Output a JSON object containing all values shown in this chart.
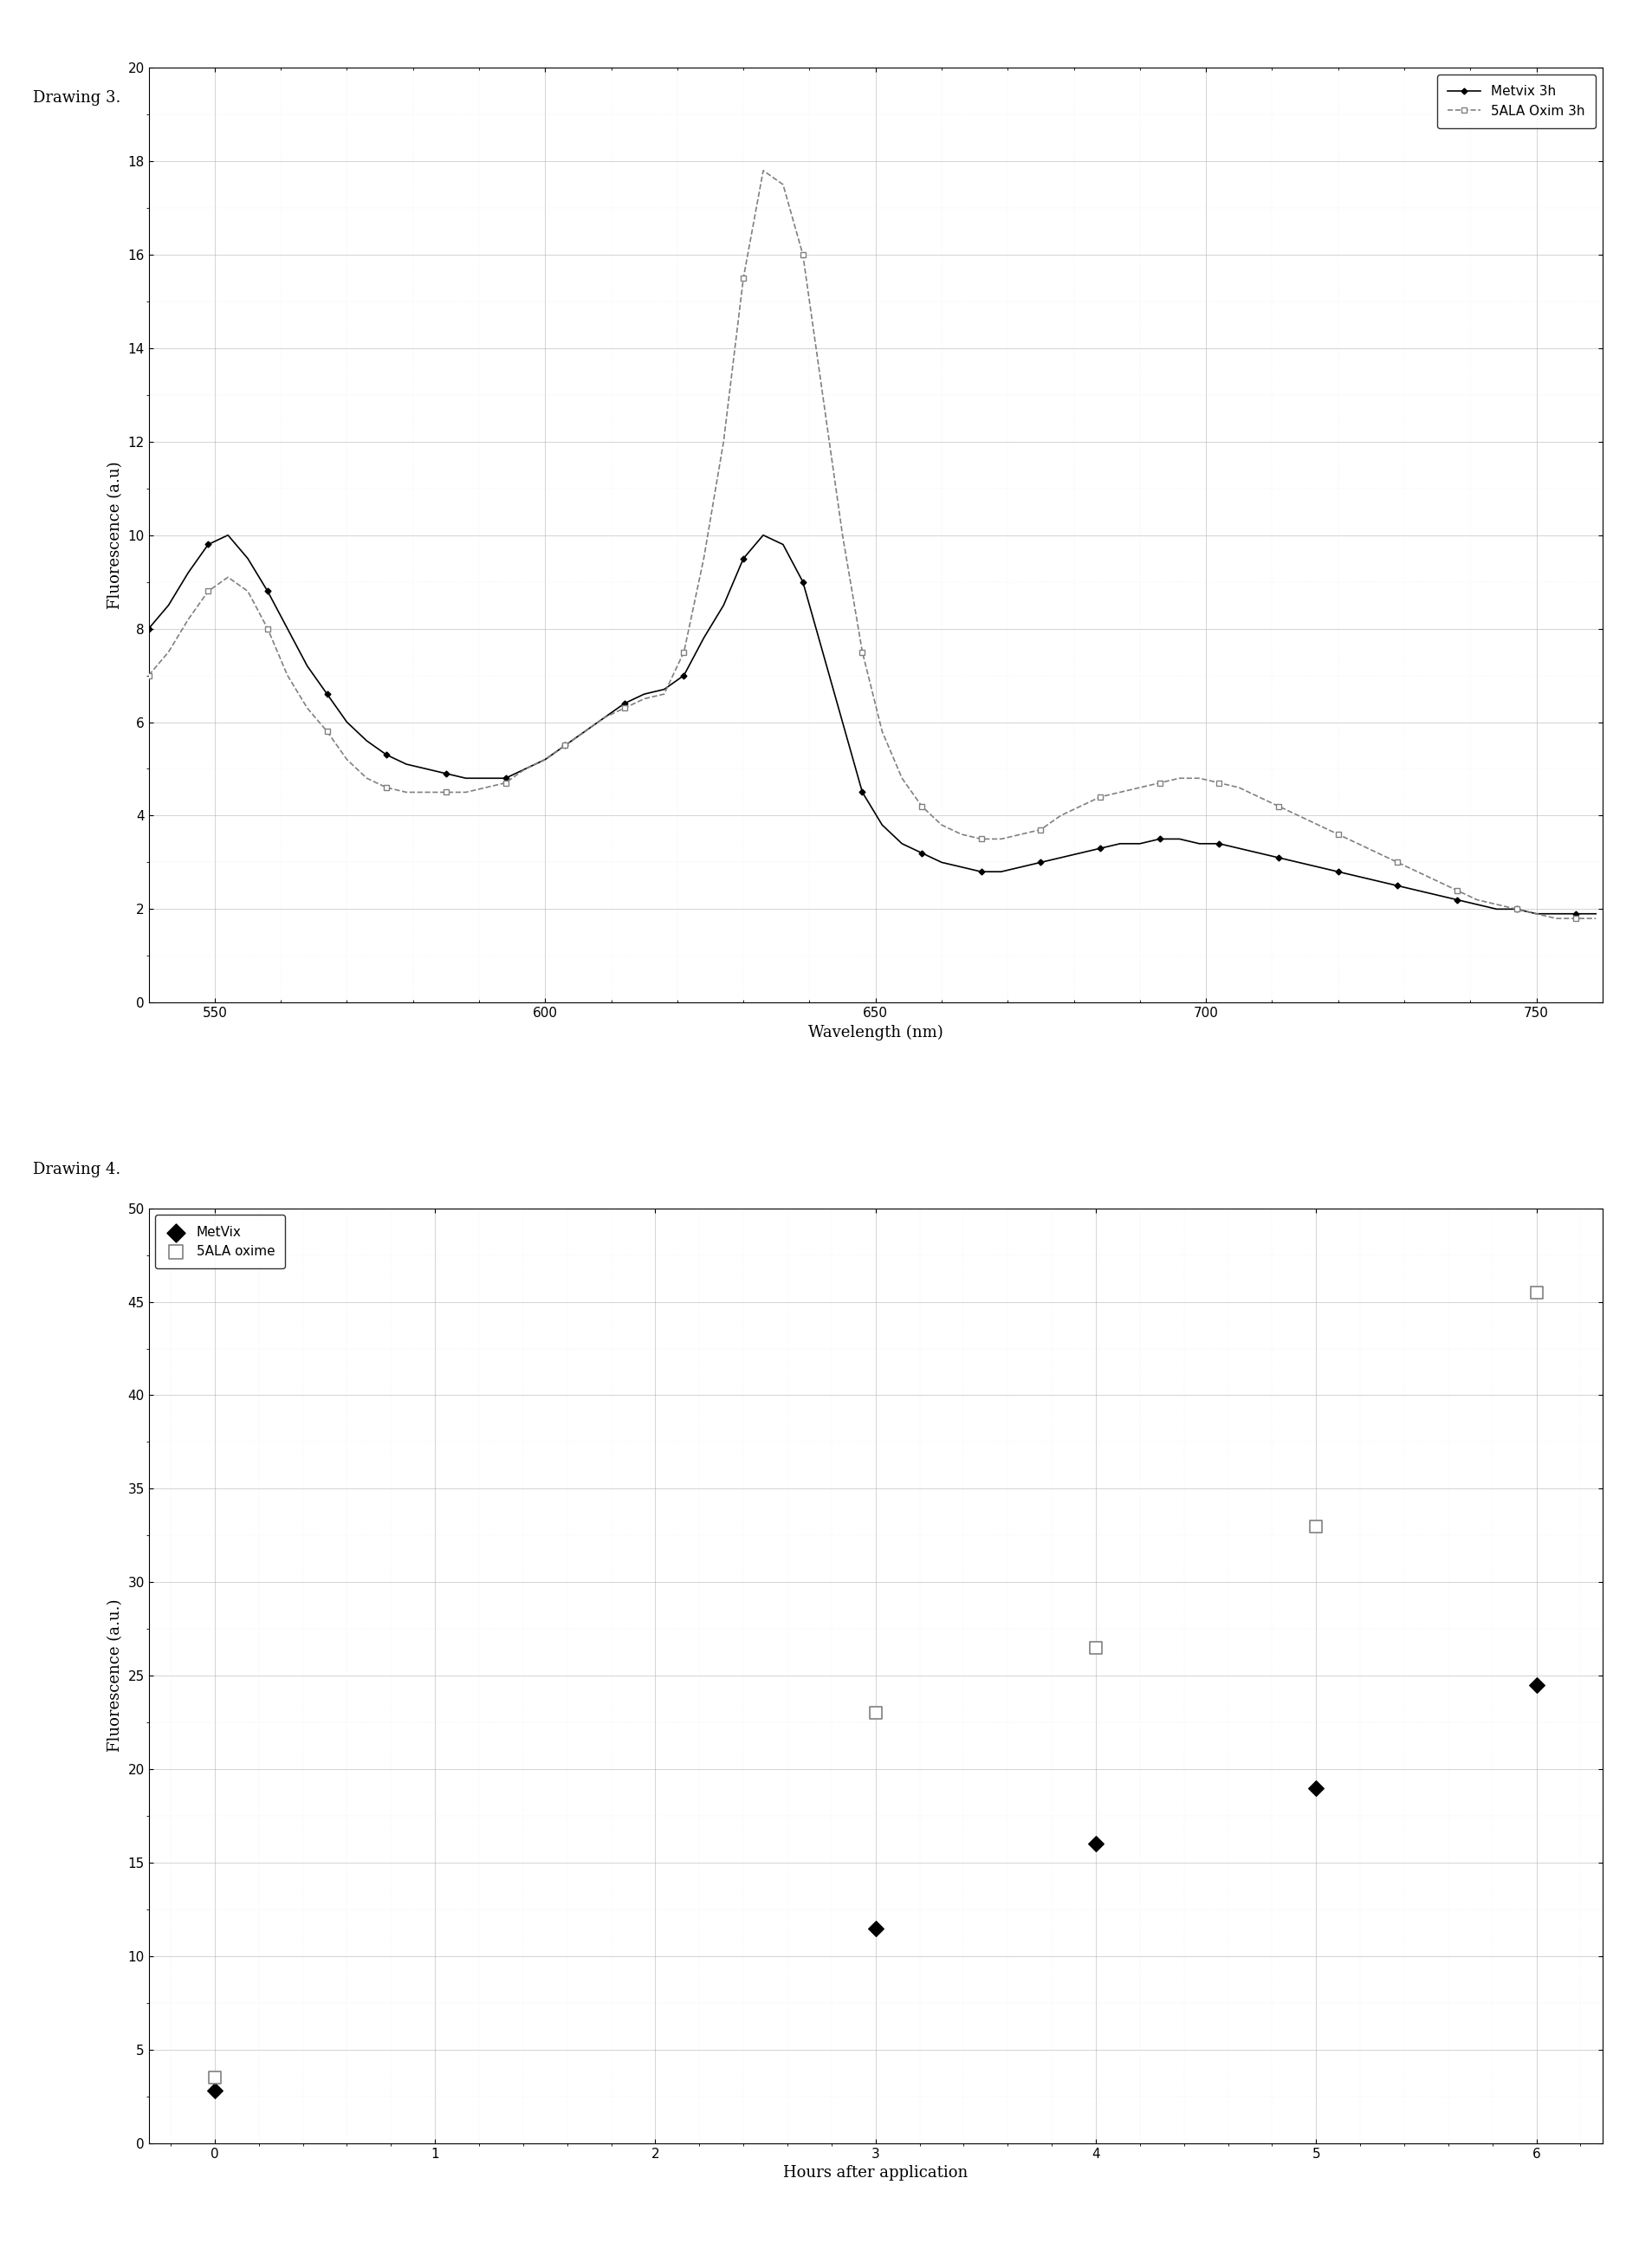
{
  "drawing3": {
    "title": "Drawing 3.",
    "xlabel": "Wavelength (nm)",
    "ylabel": "Fluorescence (a.u)",
    "xlim": [
      540,
      760
    ],
    "ylim": [
      0,
      20
    ],
    "yticks": [
      0,
      2,
      4,
      6,
      8,
      10,
      12,
      14,
      16,
      18,
      20
    ],
    "xticks": [
      550,
      600,
      650,
      700,
      750
    ],
    "legend": [
      "Metvix 3h",
      "5ALA Oxim 3h"
    ],
    "metvix_x": [
      540,
      543,
      546,
      549,
      552,
      555,
      558,
      561,
      564,
      567,
      570,
      573,
      576,
      579,
      582,
      585,
      588,
      591,
      594,
      597,
      600,
      603,
      606,
      609,
      612,
      615,
      618,
      621,
      624,
      627,
      630,
      633,
      636,
      639,
      642,
      645,
      648,
      651,
      654,
      657,
      660,
      663,
      666,
      669,
      672,
      675,
      678,
      681,
      684,
      687,
      690,
      693,
      696,
      699,
      702,
      705,
      708,
      711,
      714,
      717,
      720,
      723,
      726,
      729,
      732,
      735,
      738,
      741,
      744,
      747,
      750,
      753,
      756,
      759
    ],
    "metvix_y": [
      8.0,
      8.5,
      9.2,
      9.8,
      10.0,
      9.5,
      8.8,
      8.0,
      7.2,
      6.6,
      6.0,
      5.6,
      5.3,
      5.1,
      5.0,
      4.9,
      4.8,
      4.8,
      4.8,
      5.0,
      5.2,
      5.5,
      5.8,
      6.1,
      6.4,
      6.6,
      6.7,
      7.0,
      7.8,
      8.5,
      9.5,
      10.0,
      9.8,
      9.0,
      7.5,
      6.0,
      4.5,
      3.8,
      3.4,
      3.2,
      3.0,
      2.9,
      2.8,
      2.8,
      2.9,
      3.0,
      3.1,
      3.2,
      3.3,
      3.4,
      3.4,
      3.5,
      3.5,
      3.4,
      3.4,
      3.3,
      3.2,
      3.1,
      3.0,
      2.9,
      2.8,
      2.7,
      2.6,
      2.5,
      2.4,
      2.3,
      2.2,
      2.1,
      2.0,
      2.0,
      1.9,
      1.9,
      1.9,
      1.9
    ],
    "oxim_x": [
      540,
      543,
      546,
      549,
      552,
      555,
      558,
      561,
      564,
      567,
      570,
      573,
      576,
      579,
      582,
      585,
      588,
      591,
      594,
      597,
      600,
      603,
      606,
      609,
      612,
      615,
      618,
      621,
      624,
      627,
      630,
      633,
      636,
      639,
      642,
      645,
      648,
      651,
      654,
      657,
      660,
      663,
      666,
      669,
      672,
      675,
      678,
      681,
      684,
      687,
      690,
      693,
      696,
      699,
      702,
      705,
      708,
      711,
      714,
      717,
      720,
      723,
      726,
      729,
      732,
      735,
      738,
      741,
      744,
      747,
      750,
      753,
      756,
      759
    ],
    "oxim_y": [
      7.0,
      7.5,
      8.2,
      8.8,
      9.1,
      8.8,
      8.0,
      7.0,
      6.3,
      5.8,
      5.2,
      4.8,
      4.6,
      4.5,
      4.5,
      4.5,
      4.5,
      4.6,
      4.7,
      5.0,
      5.2,
      5.5,
      5.8,
      6.1,
      6.3,
      6.5,
      6.6,
      7.5,
      9.5,
      12.0,
      15.5,
      17.8,
      17.5,
      16.0,
      13.0,
      10.0,
      7.5,
      5.8,
      4.8,
      4.2,
      3.8,
      3.6,
      3.5,
      3.5,
      3.6,
      3.7,
      4.0,
      4.2,
      4.4,
      4.5,
      4.6,
      4.7,
      4.8,
      4.8,
      4.7,
      4.6,
      4.4,
      4.2,
      4.0,
      3.8,
      3.6,
      3.4,
      3.2,
      3.0,
      2.8,
      2.6,
      2.4,
      2.2,
      2.1,
      2.0,
      1.9,
      1.8,
      1.8,
      1.8
    ]
  },
  "drawing4": {
    "title": "Drawing 4.",
    "xlabel": "Hours after application",
    "ylabel": "Fluorescence (a.u.)",
    "xlim": [
      -0.3,
      6.3
    ],
    "ylim": [
      0,
      50
    ],
    "yticks": [
      0,
      5,
      10,
      15,
      20,
      25,
      30,
      35,
      40,
      45,
      50
    ],
    "xticks": [
      0,
      1,
      2,
      3,
      4,
      5,
      6
    ],
    "legend": [
      "MetVix",
      "5ALA oxime"
    ],
    "metvix_x": [
      0,
      3,
      4,
      5,
      6
    ],
    "metvix_y": [
      2.8,
      11.5,
      16.0,
      19.0,
      24.5
    ],
    "oxime_x": [
      0,
      3,
      4,
      5,
      6
    ],
    "oxime_y": [
      3.5,
      23.0,
      26.5,
      33.0,
      45.5
    ]
  },
  "bg_color": "#ffffff",
  "line_color_dark": "#333333",
  "line_color_gray": "#888888"
}
